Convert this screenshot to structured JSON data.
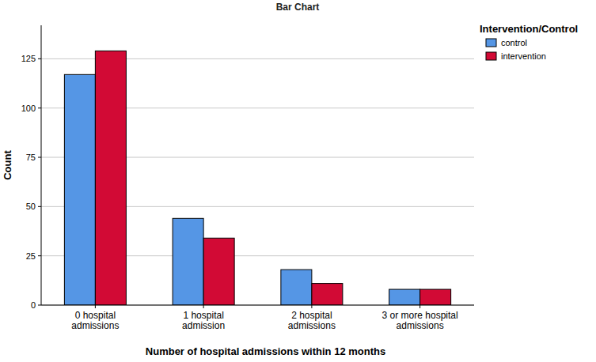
{
  "chart_data": {
    "type": "bar",
    "title": "Bar Chart",
    "x_label": "Number of hospital admissions within 12 months",
    "y_label": "Count",
    "legend_title": "Intervention/Control",
    "categories": [
      "0 hospital admissions",
      "1 hospital admission",
      "2 hospital admissions",
      "3 or more hospital admissions"
    ],
    "series": [
      {
        "name": "control",
        "color": "#5596e5",
        "values": [
          117,
          44,
          18,
          8
        ]
      },
      {
        "name": "intervention",
        "color": "#d20a35",
        "values": [
          129,
          34,
          11,
          8
        ]
      }
    ],
    "ylim": [
      0,
      142
    ],
    "yticks": [
      0,
      25,
      50,
      75,
      100,
      125
    ],
    "grid": true,
    "legend": "right"
  }
}
